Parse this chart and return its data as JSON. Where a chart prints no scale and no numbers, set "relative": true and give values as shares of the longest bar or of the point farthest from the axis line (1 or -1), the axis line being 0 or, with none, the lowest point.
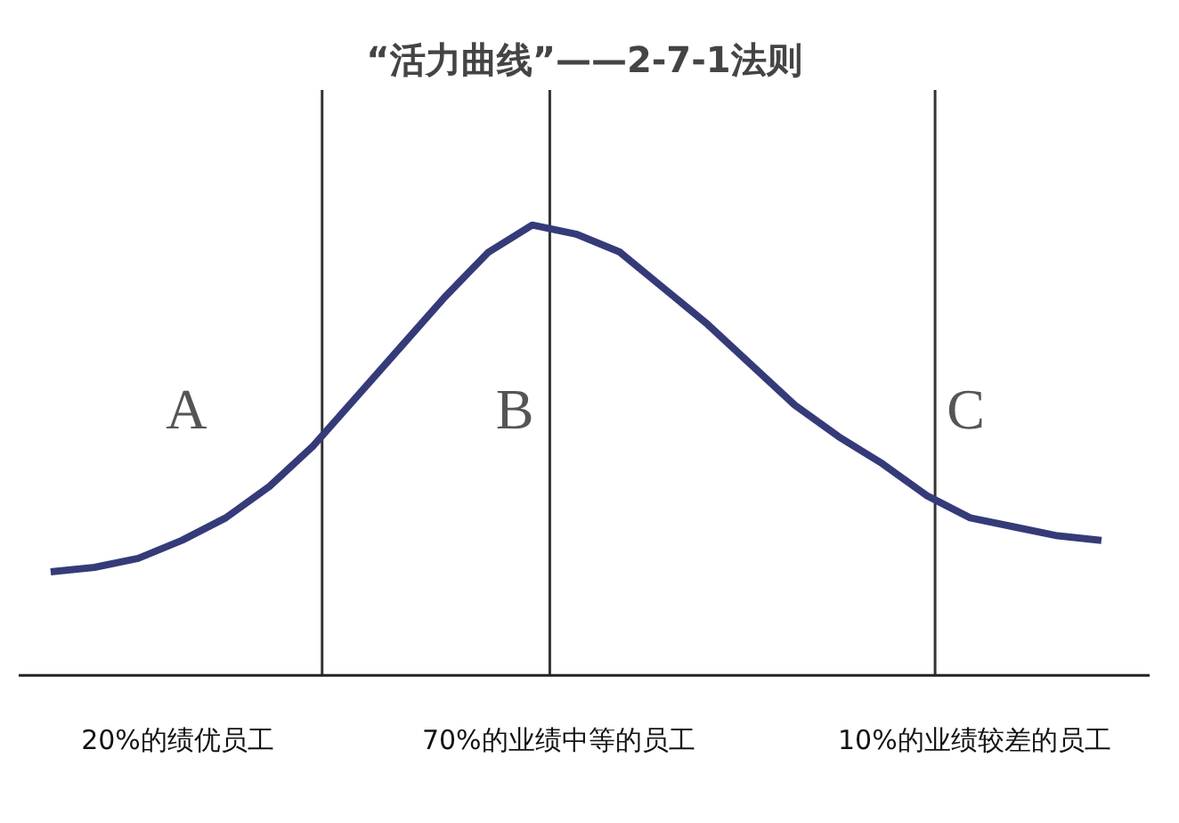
{
  "chart_data": {
    "type": "line",
    "title": "“活力曲线”——2-7-1法则",
    "relative": true,
    "grid": false,
    "marker": "none",
    "line_style": "solid",
    "categories": [
      null,
      null,
      null,
      null,
      null,
      null,
      null,
      null,
      null,
      null,
      null,
      null,
      null,
      null,
      null,
      null,
      null,
      null,
      null,
      null,
      null,
      null,
      null,
      null,
      null
    ],
    "series": [
      {
        "color": "#353b78",
        "values": [
          0.23,
          0.24,
          0.26,
          0.3,
          0.35,
          0.42,
          0.51,
          0.62,
          0.73,
          0.84,
          0.94,
          1.0,
          0.98,
          0.94,
          0.86,
          0.78,
          0.69,
          0.6,
          0.53,
          0.47,
          0.4,
          0.35,
          0.33,
          0.31,
          0.3
        ]
      }
    ],
    "annotations": [
      "A",
      "B",
      "C",
      "20%的绩优员工",
      "70%的业绩中等的员工",
      "10%的业绩较差的员工"
    ]
  }
}
